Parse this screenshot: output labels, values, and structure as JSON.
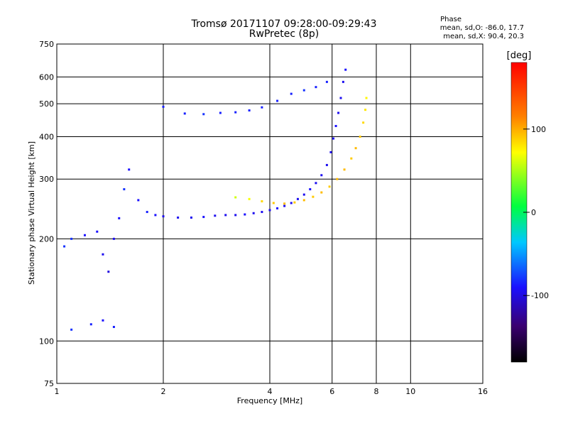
{
  "header": {
    "title": "Tromsø 20171107 09:28:00-09:29:43",
    "subtitle": "RwPretec (8p)",
    "stats_title": "Phase",
    "stats_o": "mean, sd,O: -86.0, 17.7",
    "stats_x": "mean, sd,X: 90.4, 20.3"
  },
  "colorbar": {
    "unit_label": "[deg]",
    "range": [
      -180,
      180
    ],
    "ticks": [
      {
        "value": 100,
        "label": "100"
      },
      {
        "value": 0,
        "label": "0"
      },
      {
        "value": -100,
        "label": "-100"
      }
    ]
  },
  "chart_data": {
    "type": "scatter",
    "xlabel": "Frequency [MHz]",
    "ylabel": "Stationary phase Virtual Height [km]",
    "x_scale": "log",
    "y_scale": "log",
    "xlim": [
      1,
      16
    ],
    "ylim": [
      75,
      750
    ],
    "grid": true,
    "x_ticks": [
      {
        "value": 1,
        "label": "1"
      },
      {
        "value": 2,
        "label": "2"
      },
      {
        "value": 4,
        "label": "4"
      },
      {
        "value": 6,
        "label": "6"
      },
      {
        "value": 8,
        "label": "8"
      },
      {
        "value": 10,
        "label": "10"
      },
      {
        "value": 16,
        "label": "16"
      }
    ],
    "y_ticks": [
      {
        "value": 75,
        "label": "75"
      },
      {
        "value": 100,
        "label": "100"
      },
      {
        "value": 200,
        "label": "200"
      },
      {
        "value": 300,
        "label": "300"
      },
      {
        "value": 400,
        "label": "400"
      },
      {
        "value": 500,
        "label": "500"
      },
      {
        "value": 600,
        "label": "600"
      },
      {
        "value": 750,
        "label": "750"
      }
    ],
    "series": [
      {
        "trace": "O-mode F-layer trace",
        "points": [
          [
            2.0,
            233,
            -95
          ],
          [
            2.2,
            231,
            -95
          ],
          [
            2.4,
            231,
            -95
          ],
          [
            2.6,
            232,
            -90
          ],
          [
            2.8,
            234,
            -95
          ],
          [
            3.0,
            235,
            -95
          ],
          [
            3.2,
            235,
            -95
          ],
          [
            3.4,
            236,
            -90
          ],
          [
            3.6,
            238,
            -95
          ],
          [
            3.8,
            240,
            -95
          ],
          [
            4.0,
            243,
            -95
          ],
          [
            4.2,
            246,
            -90
          ],
          [
            4.4,
            250,
            -95
          ],
          [
            4.6,
            255,
            -95
          ],
          [
            4.8,
            262,
            -95
          ],
          [
            5.0,
            270,
            -95
          ],
          [
            5.2,
            280,
            -90
          ],
          [
            5.4,
            292,
            -95
          ],
          [
            5.6,
            308,
            -95
          ],
          [
            5.8,
            330,
            -95
          ],
          [
            5.95,
            360,
            -95
          ],
          [
            6.05,
            395,
            -95
          ],
          [
            6.15,
            430,
            -90
          ],
          [
            6.25,
            470,
            -95
          ],
          [
            6.35,
            520,
            -95
          ],
          [
            6.45,
            580,
            -95
          ],
          [
            6.55,
            630,
            -90
          ]
        ]
      },
      {
        "trace": "X-mode F-layer trace",
        "points": [
          [
            3.2,
            265,
            60
          ],
          [
            3.5,
            262,
            70
          ],
          [
            3.8,
            258,
            85
          ],
          [
            4.1,
            255,
            90
          ],
          [
            4.4,
            254,
            95
          ],
          [
            4.7,
            256,
            90
          ],
          [
            5.0,
            260,
            95
          ],
          [
            5.3,
            266,
            90
          ],
          [
            5.6,
            274,
            95
          ],
          [
            5.9,
            285,
            90
          ],
          [
            6.2,
            300,
            95
          ],
          [
            6.5,
            320,
            95
          ],
          [
            6.8,
            345,
            90
          ],
          [
            7.0,
            370,
            95
          ],
          [
            7.2,
            400,
            90
          ],
          [
            7.35,
            440,
            85
          ],
          [
            7.45,
            480,
            80
          ],
          [
            7.5,
            520,
            75
          ]
        ]
      },
      {
        "trace": "Upper multi-hop trace",
        "points": [
          [
            2.0,
            490,
            -85
          ],
          [
            2.3,
            468,
            -85
          ],
          [
            2.6,
            466,
            -80
          ],
          [
            2.9,
            470,
            -85
          ],
          [
            3.2,
            472,
            -85
          ],
          [
            3.5,
            478,
            -85
          ],
          [
            3.8,
            488,
            -85
          ],
          [
            4.2,
            510,
            -85
          ],
          [
            4.6,
            535,
            -85
          ],
          [
            5.0,
            548,
            -80
          ],
          [
            5.4,
            560,
            -85
          ],
          [
            5.8,
            580,
            -85
          ]
        ]
      },
      {
        "trace": "E-region / low-frequency echoes",
        "points": [
          [
            1.05,
            190,
            -80
          ],
          [
            1.1,
            200,
            -80
          ],
          [
            1.2,
            205,
            -90
          ],
          [
            1.3,
            210,
            -90
          ],
          [
            1.35,
            180,
            -95
          ],
          [
            1.4,
            160,
            -100
          ],
          [
            1.45,
            200,
            -95
          ],
          [
            1.5,
            230,
            -90
          ],
          [
            1.55,
            280,
            -80
          ],
          [
            1.6,
            320,
            -90
          ],
          [
            1.7,
            260,
            -90
          ],
          [
            1.8,
            240,
            -85
          ],
          [
            1.9,
            235,
            -90
          ],
          [
            1.1,
            108,
            -80
          ],
          [
            1.25,
            112,
            -85
          ],
          [
            1.35,
            115,
            -90
          ],
          [
            1.45,
            110,
            -85
          ]
        ]
      }
    ]
  }
}
